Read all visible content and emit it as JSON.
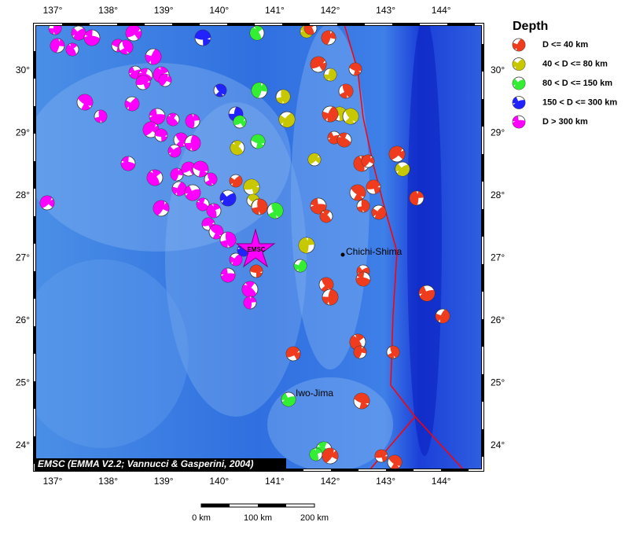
{
  "map": {
    "lon_labels": [
      "137°",
      "138°",
      "139°",
      "140°",
      "141°",
      "142°",
      "143°",
      "144°"
    ],
    "lat_labels": [
      "30°",
      "29°",
      "28°",
      "27°",
      "26°",
      "25°",
      "24°"
    ],
    "credit": "EMSC (EMMA V2.2; Vannucci & Gasperini, 2004)",
    "epicenter_label": "EMSC",
    "places": [
      "Chichi-Shima",
      "Iwo-Jima"
    ],
    "scale_labels": [
      "0 km",
      "100 km",
      "200 km"
    ]
  },
  "legend": {
    "title": "Depth",
    "entries": [
      {
        "label": "D <= 40 km",
        "color": "#f03c1e"
      },
      {
        "label": "40 < D <= 80 km",
        "color": "#c8c800"
      },
      {
        "label": "80 < D <= 150 km",
        "color": "#33ee33"
      },
      {
        "label": "150 < D <= 300 km",
        "color": "#2222ff"
      },
      {
        "label": "D > 300 km",
        "color": "#ff00ff"
      }
    ]
  }
}
